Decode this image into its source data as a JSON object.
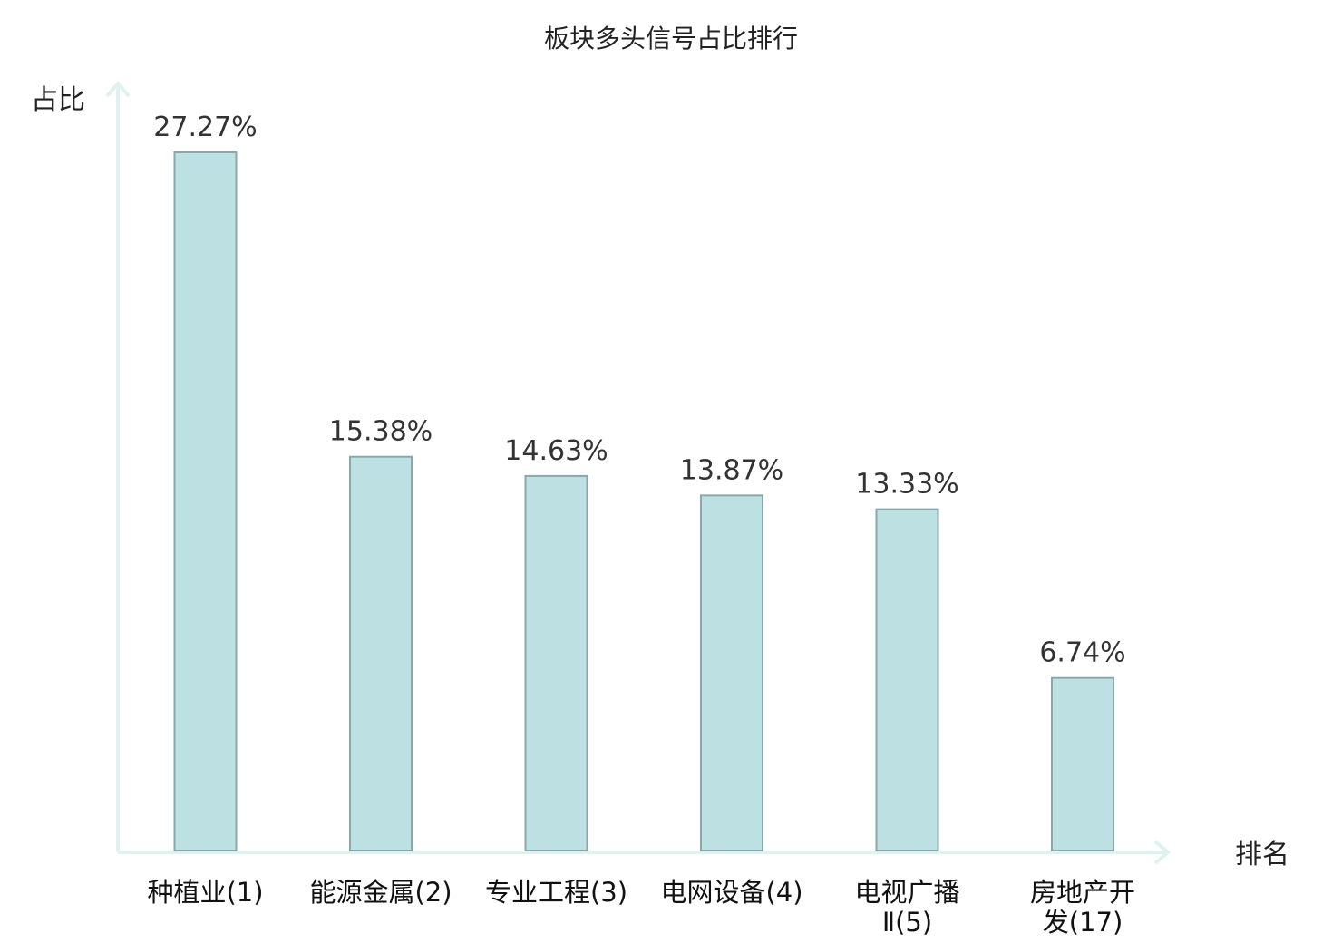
{
  "chart_data": {
    "type": "bar",
    "title": "板块多头信号占比排行",
    "xlabel": "排名",
    "ylabel": "占比",
    "categories": [
      [
        "种植业(1)"
      ],
      [
        "能源金属(2)"
      ],
      [
        "专业工程(3)"
      ],
      [
        "电网设备(4)"
      ],
      [
        "电视广播",
        "Ⅱ(5)"
      ],
      [
        "房地产开",
        "发(17)"
      ]
    ],
    "values": [
      27.27,
      15.38,
      14.63,
      13.87,
      13.33,
      6.74
    ],
    "data_labels": [
      "27.27%",
      "15.38%",
      "14.63%",
      "13.87%",
      "13.33%",
      "6.74%"
    ],
    "highlight_index": 5,
    "ylim": [
      0,
      27.27
    ],
    "grid": false,
    "colors": {
      "bar_fill": "#bde0e2",
      "bar_stroke": "#8aa8aa",
      "axis": "#dff2ef",
      "highlight_text": "#e01010",
      "text": "#111111"
    }
  }
}
